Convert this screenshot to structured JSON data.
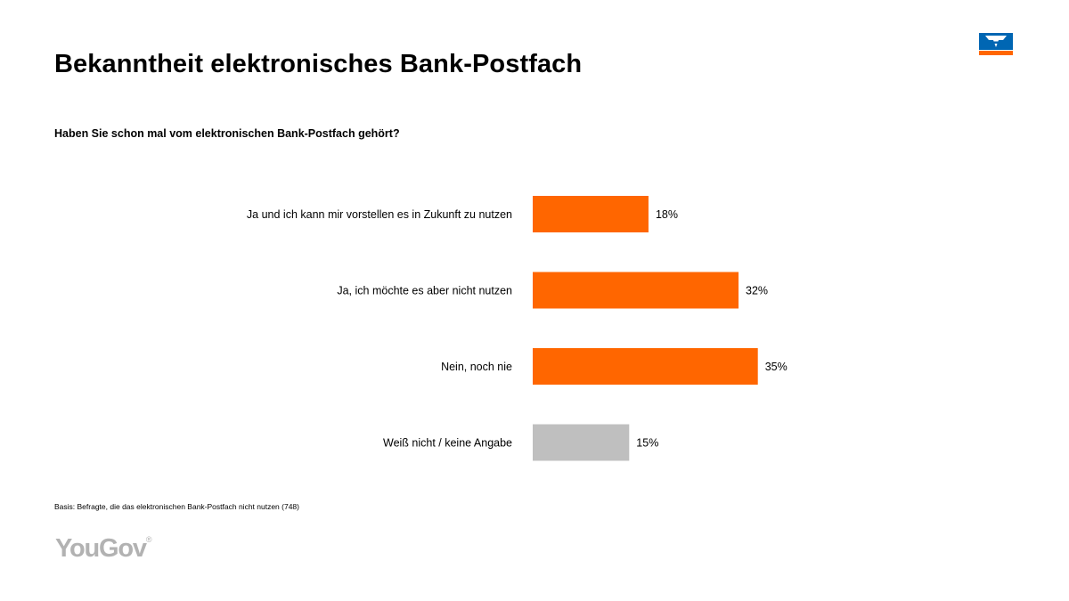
{
  "header": {
    "title": "Bekanntheit elektronisches Bank-Postfach",
    "question": "Haben Sie schon mal vom elektronischen Bank-Postfach gehört?"
  },
  "footer": {
    "basis": "Basis: Befragte, die das elektronischen Bank-Postfach nicht nutzen (748)",
    "brand": "YouGov",
    "brand_mark": "®"
  },
  "colors": {
    "primary_bar": "#ff6600",
    "neutral_bar": "#bfbfbf",
    "logo_blue": "#0066b3",
    "logo_orange": "#ff6600"
  },
  "chart_data": {
    "type": "bar",
    "orientation": "horizontal",
    "categories": [
      "Ja und ich kann mir vorstellen es in Zukunft zu nutzen",
      "Ja, ich möchte es aber nicht nutzen",
      "Nein, noch nie",
      "Weiß nicht / keine Angabe"
    ],
    "values": [
      18,
      32,
      35,
      15
    ],
    "value_labels": [
      "18%",
      "32%",
      "35%",
      "15%"
    ],
    "bar_colors": [
      "#ff6600",
      "#ff6600",
      "#ff6600",
      "#bfbfbf"
    ],
    "unit": "%",
    "xlim": [
      0,
      100
    ],
    "grid": false,
    "legend": "none"
  }
}
